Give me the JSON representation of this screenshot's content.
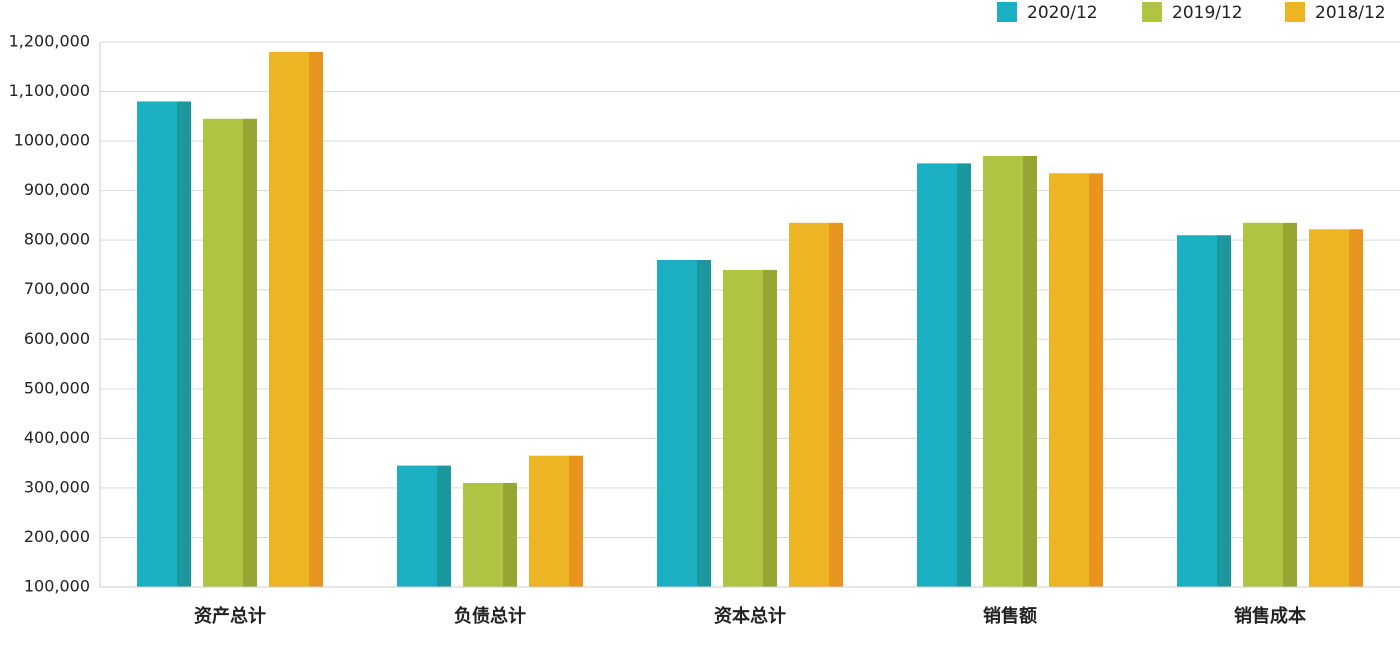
{
  "chart_data": {
    "type": "bar",
    "categories": [
      "资产总计",
      "负债总计",
      "资本总计",
      "销售额",
      "销售成本"
    ],
    "series": [
      {
        "name": "2020/12",
        "color": "#1ab0c1",
        "shade": "#1a989e",
        "values": [
          1080000,
          345000,
          760000,
          955000,
          810000
        ]
      },
      {
        "name": "2019/12",
        "color": "#afc443",
        "shade": "#97a633",
        "values": [
          1045000,
          310000,
          740000,
          970000,
          835000
        ]
      },
      {
        "name": "2018/12",
        "color": "#edb523",
        "shade": "#e8951f",
        "values": [
          1180000,
          365000,
          835000,
          935000,
          822000
        ]
      }
    ],
    "ylim": [
      100000,
      1200000
    ],
    "yticks": [
      {
        "value": 100000,
        "label": "100,000"
      },
      {
        "value": 200000,
        "label": "200,000"
      },
      {
        "value": 300000,
        "label": "300,000"
      },
      {
        "value": 400000,
        "label": "400,000"
      },
      {
        "value": 500000,
        "label": "500,000"
      },
      {
        "value": 600000,
        "label": "600,000"
      },
      {
        "value": 700000,
        "label": "700,000"
      },
      {
        "value": 800000,
        "label": "800,000"
      },
      {
        "value": 900000,
        "label": "900,000"
      },
      {
        "value": 1000000,
        "label": "1000,000"
      },
      {
        "value": 1100000,
        "label": "1,100,000"
      },
      {
        "value": 1200000,
        "label": "1,200,000"
      }
    ],
    "grid": true,
    "legend": "top-right"
  }
}
